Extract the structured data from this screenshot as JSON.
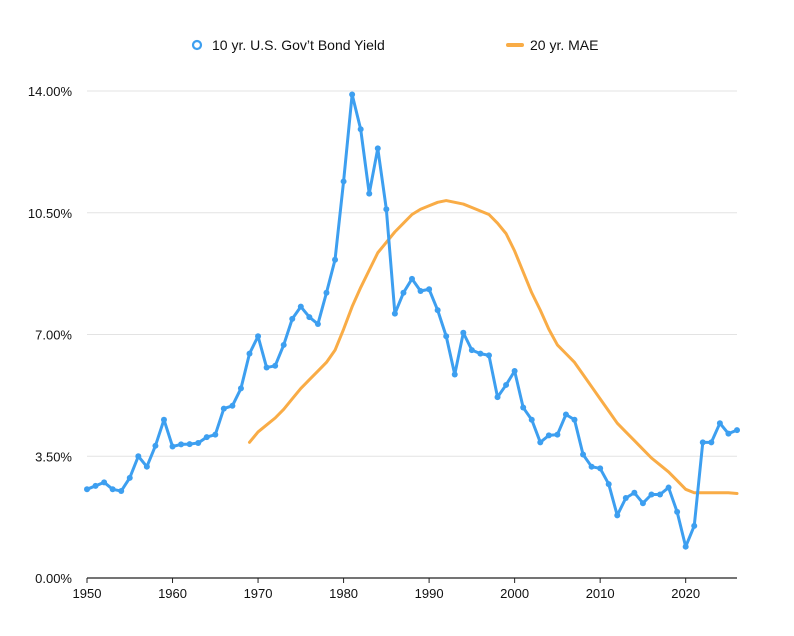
{
  "chart_data": {
    "type": "line",
    "title": "",
    "xlabel": "",
    "ylabel": "",
    "xlim": [
      1950,
      2026
    ],
    "ylim": [
      0,
      14
    ],
    "y_ticks": [
      {
        "value": 0,
        "label": "0.00%"
      },
      {
        "value": 3.5,
        "label": "3.50%"
      },
      {
        "value": 7,
        "label": "7.00%"
      },
      {
        "value": 10.5,
        "label": "10.50%"
      },
      {
        "value": 14,
        "label": "14.00%"
      }
    ],
    "x_ticks": [
      {
        "value": 1950,
        "label": "1950"
      },
      {
        "value": 1960,
        "label": "1960"
      },
      {
        "value": 1970,
        "label": "1970"
      },
      {
        "value": 1980,
        "label": "1980"
      },
      {
        "value": 1990,
        "label": "1990"
      },
      {
        "value": 2000,
        "label": "2000"
      },
      {
        "value": 2010,
        "label": "2010"
      },
      {
        "value": 2020,
        "label": "2020"
      }
    ],
    "grid": true,
    "legend_position": "top",
    "series": [
      {
        "name": "10 yr. U.S. Gov’t Bond Yield",
        "color": "#3d9ff0",
        "markers": true,
        "x": [
          1950,
          1951,
          1952,
          1953,
          1954,
          1955,
          1956,
          1957,
          1958,
          1959,
          1960,
          1961,
          1962,
          1963,
          1964,
          1965,
          1966,
          1967,
          1968,
          1969,
          1970,
          1971,
          1972,
          1973,
          1974,
          1975,
          1976,
          1977,
          1978,
          1979,
          1980,
          1981,
          1982,
          1983,
          1984,
          1985,
          1986,
          1987,
          1988,
          1989,
          1990,
          1991,
          1992,
          1993,
          1994,
          1995,
          1996,
          1997,
          1998,
          1999,
          2000,
          2001,
          2002,
          2003,
          2004,
          2005,
          2006,
          2007,
          2008,
          2009,
          2010,
          2011,
          2012,
          2013,
          2014,
          2015,
          2016,
          2017,
          2018,
          2019,
          2020,
          2021,
          2022,
          2023,
          2024,
          2025,
          2026
        ],
        "values": [
          2.55,
          2.65,
          2.75,
          2.55,
          2.5,
          2.88,
          3.5,
          3.2,
          3.8,
          4.55,
          3.78,
          3.84,
          3.85,
          3.88,
          4.05,
          4.12,
          4.87,
          4.95,
          5.45,
          6.45,
          6.95,
          6.05,
          6.1,
          6.7,
          7.45,
          7.8,
          7.5,
          7.3,
          8.2,
          9.15,
          11.4,
          13.9,
          12.9,
          11.05,
          12.35,
          10.6,
          7.6,
          8.2,
          8.6,
          8.25,
          8.3,
          7.7,
          6.95,
          5.85,
          7.05,
          6.55,
          6.45,
          6.4,
          5.2,
          5.55,
          5.95,
          4.9,
          4.55,
          3.9,
          4.1,
          4.12,
          4.7,
          4.55,
          3.55,
          3.2,
          3.15,
          2.7,
          1.8,
          2.3,
          2.45,
          2.15,
          2.4,
          2.4,
          2.6,
          1.9,
          0.9,
          1.5,
          3.9,
          3.9,
          4.45,
          4.15,
          4.25
        ]
      },
      {
        "name": "20 yr. MAE",
        "color": "#f9ac46",
        "markers": false,
        "x": [
          1969,
          1970,
          1971,
          1972,
          1973,
          1974,
          1975,
          1976,
          1977,
          1978,
          1979,
          1980,
          1981,
          1982,
          1983,
          1984,
          1985,
          1986,
          1987,
          1988,
          1989,
          1990,
          1991,
          1992,
          1993,
          1994,
          1995,
          1996,
          1997,
          1998,
          1999,
          2000,
          2001,
          2002,
          2003,
          2004,
          2005,
          2006,
          2007,
          2008,
          2009,
          2010,
          2011,
          2012,
          2013,
          2014,
          2015,
          2016,
          2017,
          2018,
          2019,
          2020,
          2021,
          2022,
          2023,
          2024,
          2025,
          2026
        ],
        "values": [
          3.9,
          4.2,
          4.4,
          4.6,
          4.85,
          5.15,
          5.45,
          5.7,
          5.95,
          6.2,
          6.55,
          7.15,
          7.8,
          8.35,
          8.85,
          9.35,
          9.65,
          9.95,
          10.2,
          10.45,
          10.6,
          10.7,
          10.8,
          10.85,
          10.8,
          10.75,
          10.65,
          10.55,
          10.45,
          10.2,
          9.9,
          9.4,
          8.8,
          8.2,
          7.7,
          7.15,
          6.7,
          6.45,
          6.2,
          5.85,
          5.5,
          5.15,
          4.8,
          4.45,
          4.2,
          3.95,
          3.7,
          3.45,
          3.25,
          3.05,
          2.8,
          2.55,
          2.45,
          2.45,
          2.45,
          2.45,
          2.45,
          2.43
        ]
      }
    ]
  }
}
